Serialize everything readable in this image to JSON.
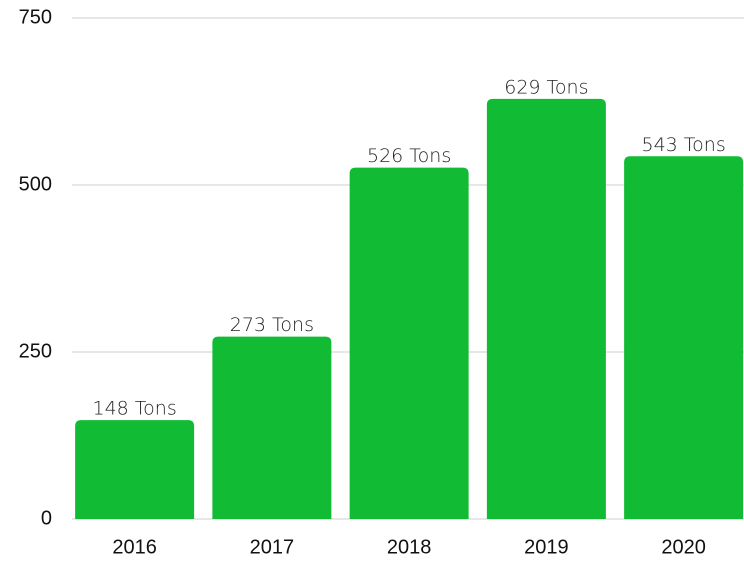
{
  "chart_data": {
    "type": "bar",
    "categories": [
      "2016",
      "2017",
      "2018",
      "2019",
      "2020"
    ],
    "values": [
      148,
      273,
      526,
      629,
      543
    ],
    "value_labels": [
      "148 Tons",
      "273 Tons",
      "526 Tons",
      "629 Tons",
      "543 Tons"
    ],
    "color": "#11bb33",
    "ylim": [
      0,
      750
    ],
    "yticks": [
      0,
      250,
      500,
      750
    ],
    "grid": true
  }
}
